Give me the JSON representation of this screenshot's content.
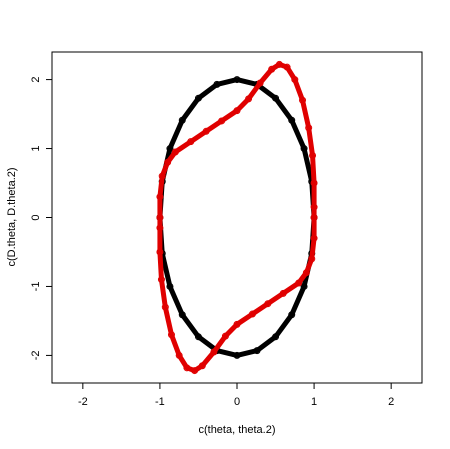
{
  "chart_data": {
    "type": "scatter",
    "xlabel": "c(theta, theta.2)",
    "ylabel": "c(D.theta, D.theta.2)",
    "xlim": [
      -2.4,
      2.4
    ],
    "ylim": [
      -2.4,
      2.4
    ],
    "xticks": [
      -2,
      -1,
      0,
      1,
      2
    ],
    "yticks": [
      -2,
      -1,
      0,
      1,
      2
    ],
    "series": [
      {
        "color": "#000000",
        "x": [
          1,
          0.97,
          0.87,
          0.71,
          0.5,
          0.26,
          0,
          -0.26,
          -0.5,
          -0.71,
          -0.87,
          -0.97,
          -1,
          -0.97,
          -0.87,
          -0.71,
          -0.5,
          -0.26,
          0,
          0.26,
          0.5,
          0.71,
          0.87,
          0.97
        ],
        "values": [
          0,
          0.52,
          1,
          1.41,
          1.73,
          1.93,
          2,
          1.93,
          1.73,
          1.41,
          1,
          0.52,
          0,
          -0.52,
          -1,
          -1.41,
          -1.73,
          -1.93,
          -2,
          -1.93,
          -1.73,
          -1.41,
          -1,
          -0.52
        ]
      },
      {
        "color": "#e00000",
        "x": [
          -1,
          -1,
          -0.97,
          -0.9,
          -0.8,
          -0.6,
          -0.4,
          -0.2,
          0,
          0.15,
          0.3,
          0.45,
          0.55,
          0.65,
          0.75,
          0.85,
          0.93,
          0.98,
          1,
          1,
          1,
          1,
          0.97,
          0.9,
          0.8,
          0.6,
          0.4,
          0.2,
          0,
          -0.15,
          -0.3,
          -0.45,
          -0.55,
          -0.65,
          -0.75,
          -0.85,
          -0.93,
          -0.98,
          -1,
          -1
        ],
        "values": [
          0,
          0.3,
          0.6,
          0.8,
          0.95,
          1.1,
          1.25,
          1.4,
          1.55,
          1.72,
          1.95,
          2.15,
          2.22,
          2.18,
          2.0,
          1.7,
          1.3,
          0.9,
          0.5,
          0.15,
          0,
          -0.3,
          -0.6,
          -0.8,
          -0.95,
          -1.1,
          -1.25,
          -1.4,
          -1.55,
          -1.72,
          -1.95,
          -2.15,
          -2.22,
          -2.18,
          -2.0,
          -1.7,
          -1.3,
          -0.9,
          -0.5,
          -0.15
        ]
      }
    ]
  }
}
